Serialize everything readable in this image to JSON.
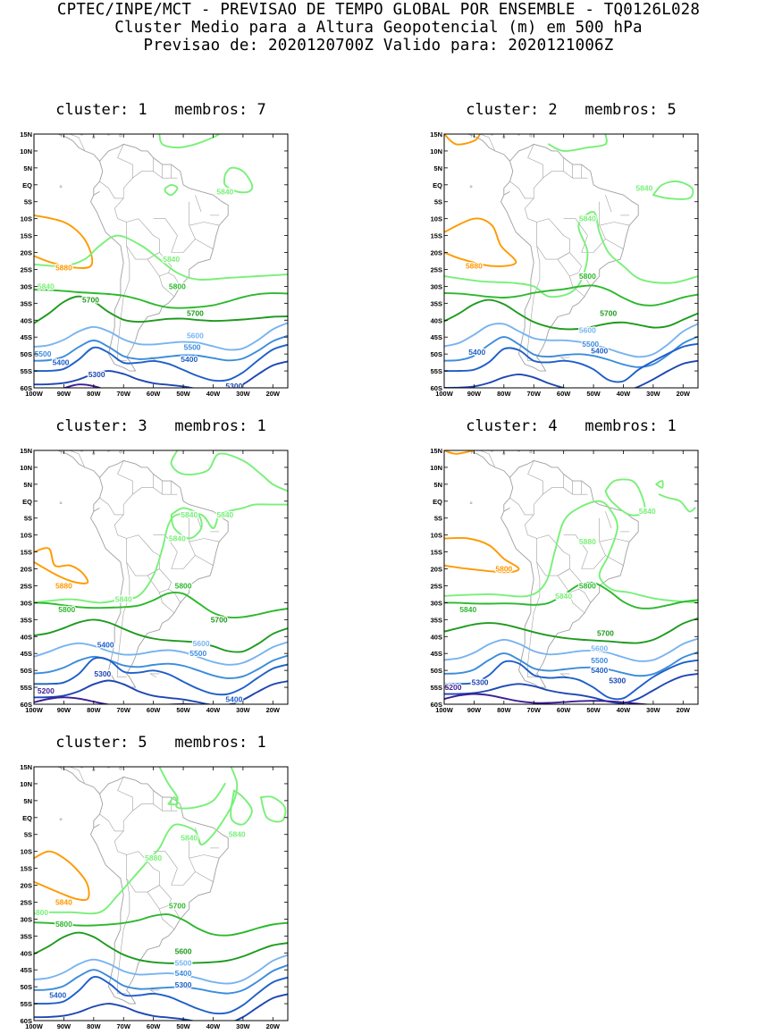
{
  "header": {
    "line1": "CPTEC/INPE/MCT - PREVISAO DE TEMPO GLOBAL POR ENSEMBLE - TQ0126L028",
    "line2": "Cluster Medio para a Altura Geopotencial (m) em 500 hPa",
    "line3": "Previsao de: 2020120700Z    Valido para: 2020121006Z"
  },
  "axes": {
    "lat_labels": [
      "15N",
      "10N",
      "5N",
      "EQ",
      "5S",
      "10S",
      "15S",
      "20S",
      "25S",
      "30S",
      "35S",
      "40S",
      "45S",
      "50S",
      "55S",
      "60S"
    ],
    "lon_labels": [
      "100W",
      "90W",
      "80W",
      "70W",
      "60W",
      "50W",
      "40W",
      "30W",
      "20W"
    ]
  },
  "colors": {
    "c5880": "#ff9900",
    "c5840": "#78f078",
    "c5800": "#2db82d",
    "c5700": "#1e9a1e",
    "c5600": "#78b4f0",
    "c5500": "#3c8cdc",
    "c5400": "#1f5fc8",
    "c5300": "#1e46b4",
    "c5200": "#3c1e96",
    "coast": "#a0a0a0"
  },
  "panels": [
    {
      "title": "cluster: 1   membros: 7",
      "labels": [
        "5840",
        "5880",
        "5840",
        "5840",
        "5800",
        "5700",
        "5700",
        "5600",
        "5500",
        "5500",
        "5400",
        "5400",
        "5300",
        "5300"
      ]
    },
    {
      "title": "cluster: 2   membros: 5",
      "labels": [
        "5840",
        "5840",
        "5880",
        "5800",
        "5700",
        "5600",
        "5500",
        "5400",
        "5400"
      ]
    },
    {
      "title": "cluster: 3   membros: 1",
      "labels": [
        "5840",
        "5840",
        "5840",
        "5880",
        "5840",
        "5800",
        "5800",
        "5700",
        "5600",
        "5500",
        "5400",
        "5400",
        "5300",
        "5200"
      ]
    },
    {
      "title": "cluster: 4   membros: 1",
      "labels": [
        "5840",
        "5840",
        "5880",
        "5800",
        "5840",
        "5800",
        "5700",
        "5600",
        "5500",
        "5400",
        "5300",
        "5300",
        "5200"
      ]
    },
    {
      "title": "cluster: 5   membros: 1",
      "labels": [
        "5840",
        "5840",
        "5880",
        "5840",
        "5800",
        "5800",
        "5700",
        "5600",
        "5500",
        "5400",
        "5400",
        "5300"
      ]
    }
  ]
}
